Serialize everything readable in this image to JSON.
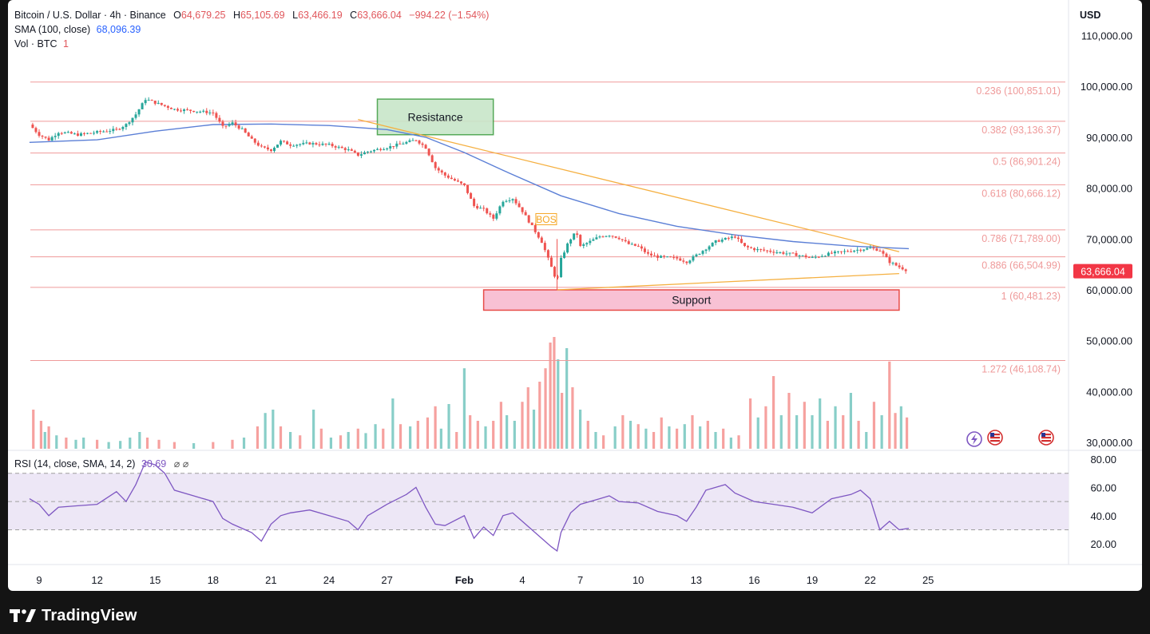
{
  "legend": {
    "symbol": "Bitcoin / U.S. Dollar · 4h · Binance",
    "open_label": "O",
    "open": "64,679.25",
    "high_label": "H",
    "high": "65,105.69",
    "low_label": "L",
    "low": "63,466.19",
    "close_label": "C",
    "close": "63,666.04",
    "change": "−994.22 (−1.54%)",
    "sma_label": "SMA (100, close)",
    "sma_value": "68,096.39",
    "vol_label": "Vol · BTC",
    "vol_value": "1"
  },
  "rsi_legend": {
    "label": "RSI (14, close, SMA, 14, 2)",
    "value": "30.69",
    "icons": "⌀  ⌀"
  },
  "currency": "USD",
  "price_badge": "63,666.04",
  "annotations": {
    "resistance": "Resistance",
    "support": "Support",
    "bos": "BOS"
  },
  "brand": "TradingView",
  "colors": {
    "up": "#26a69a",
    "down": "#ef5350",
    "sma": "#5b7fd6",
    "fib": "#ef9a9a",
    "trend": "#f5b041",
    "rsi": "#7e57c2",
    "rsi_band": "#ede7f6",
    "resistance_fill": "#c8e6c9",
    "resistance_border": "#43a047",
    "support_fill": "#f8bbd0",
    "support_border": "#e53935",
    "badge": "#f23645"
  },
  "chart_data": {
    "type": "candlestick",
    "timeframe": "4h",
    "price_axis": {
      "ticks": [
        "110,000.00",
        "100,000.00",
        "90,000.00",
        "80,000.00",
        "70,000.00",
        "60,000.00",
        "50,000.00",
        "40,000.00",
        "30,000.00"
      ],
      "values": [
        110000,
        100000,
        90000,
        80000,
        70000,
        60000,
        50000,
        40000,
        30000
      ],
      "ylim": [
        28000,
        116000
      ]
    },
    "x_axis": {
      "ticks": [
        "9",
        "12",
        "15",
        "18",
        "21",
        "24",
        "27",
        "Feb",
        "4",
        "7",
        "10",
        "13",
        "16",
        "19",
        "22",
        "25"
      ],
      "day_index": [
        0,
        3,
        6,
        9,
        12,
        15,
        18,
        22,
        25,
        28,
        31,
        34,
        37,
        40,
        43,
        46
      ]
    },
    "price_path": [
      [
        -0.5,
        92500
      ],
      [
        0,
        90500
      ],
      [
        0.5,
        89500
      ],
      [
        1,
        91000
      ],
      [
        1.5,
        90800
      ],
      [
        2,
        90500
      ],
      [
        3,
        91000
      ],
      [
        4,
        91500
      ],
      [
        4.5,
        92500
      ],
      [
        5,
        94500
      ],
      [
        5.5,
        97500
      ],
      [
        6,
        96800
      ],
      [
        7,
        95500
      ],
      [
        8,
        95200
      ],
      [
        9,
        94800
      ],
      [
        9.5,
        92000
      ],
      [
        10,
        92800
      ],
      [
        10.5,
        91500
      ],
      [
        11,
        89500
      ],
      [
        11.5,
        88000
      ],
      [
        12,
        87500
      ],
      [
        12.5,
        89200
      ],
      [
        13,
        88500
      ],
      [
        14,
        88800
      ],
      [
        15,
        88500
      ],
      [
        16,
        87500
      ],
      [
        16.5,
        86500
      ],
      [
        17,
        87200
      ],
      [
        18,
        88000
      ],
      [
        19,
        89000
      ],
      [
        19.5,
        89500
      ],
      [
        20,
        88000
      ],
      [
        20.5,
        84000
      ],
      [
        21,
        82500
      ],
      [
        22,
        80500
      ],
      [
        22.5,
        76500
      ],
      [
        23,
        75800
      ],
      [
        23.5,
        74000
      ],
      [
        24,
        77500
      ],
      [
        24.5,
        78000
      ],
      [
        25,
        75500
      ],
      [
        25.5,
        72500
      ],
      [
        26,
        69500
      ],
      [
        26.5,
        64500
      ],
      [
        26.8,
        61500
      ],
      [
        27,
        66000
      ],
      [
        27.4,
        69500
      ],
      [
        27.8,
        71500
      ],
      [
        28,
        68500
      ],
      [
        28.5,
        69500
      ],
      [
        29,
        70500
      ],
      [
        29.5,
        70800
      ],
      [
        30,
        70200
      ],
      [
        30.5,
        69000
      ],
      [
        31,
        68500
      ],
      [
        31.5,
        67000
      ],
      [
        32,
        66500
      ],
      [
        33,
        66200
      ],
      [
        33.5,
        65500
      ],
      [
        34,
        66800
      ],
      [
        35,
        69500
      ],
      [
        36,
        70500
      ],
      [
        36.5,
        68500
      ],
      [
        37,
        68000
      ],
      [
        38,
        67500
      ],
      [
        39,
        67000
      ],
      [
        40,
        66300
      ],
      [
        41,
        67200
      ],
      [
        42,
        67700
      ],
      [
        43,
        68200
      ],
      [
        43.5,
        67800
      ],
      [
        44,
        65500
      ],
      [
        44.5,
        64500
      ],
      [
        45,
        63666
      ]
    ],
    "sma_path": [
      [
        -0.5,
        89000
      ],
      [
        3,
        89500
      ],
      [
        6,
        91200
      ],
      [
        9,
        92500
      ],
      [
        12,
        92600
      ],
      [
        15,
        92300
      ],
      [
        18,
        91500
      ],
      [
        20,
        90000
      ],
      [
        22,
        87000
      ],
      [
        24,
        83500
      ],
      [
        27,
        78500
      ],
      [
        30,
        75000
      ],
      [
        33,
        72500
      ],
      [
        36,
        70800
      ],
      [
        39,
        69500
      ],
      [
        42,
        68600
      ],
      [
        45,
        68096
      ]
    ],
    "fibonacci": [
      {
        "level": "0.236",
        "price": 100851.01,
        "label": "0.236 (100,851.01)"
      },
      {
        "level": "0.382",
        "price": 93136.37,
        "label": "0.382 (93,136.37)"
      },
      {
        "level": "0.5",
        "price": 86901.24,
        "label": "0.5 (86,901.24)"
      },
      {
        "level": "0.618",
        "price": 80666.12,
        "label": "0.618 (80,666.12)"
      },
      {
        "level": "0.786",
        "price": 71789.0,
        "label": "0.786 (71,789.00)"
      },
      {
        "level": "0.886",
        "price": 66504.99,
        "label": "0.886 (66,504.99)"
      },
      {
        "level": "1",
        "price": 60481.23,
        "label": "1 (60,481.23)"
      },
      {
        "level": "1.272",
        "price": 46108.74,
        "label": "1.272 (46,108.74)"
      }
    ],
    "resistance_zone": {
      "x": [
        17.5,
        23.5
      ],
      "price": [
        90500,
        97500
      ]
    },
    "support_zone": {
      "x": [
        23.0,
        44.5
      ],
      "price": [
        56000,
        60000
      ]
    },
    "trendlines": [
      {
        "from": [
          16.5,
          93500
        ],
        "to": [
          44.5,
          67500
        ]
      },
      {
        "from": [
          26.8,
          60000
        ],
        "to": [
          44.5,
          63200
        ]
      }
    ],
    "rsi": {
      "axis_ticks": [
        "80.00",
        "60.00",
        "40.00",
        "20.00"
      ],
      "axis_values": [
        80,
        60,
        40,
        20
      ],
      "ylim": [
        10,
        90
      ],
      "band": [
        30,
        70
      ],
      "mid": 50,
      "path": [
        [
          -0.5,
          52
        ],
        [
          0,
          48
        ],
        [
          0.5,
          40
        ],
        [
          1,
          46
        ],
        [
          2,
          47
        ],
        [
          3,
          48
        ],
        [
          4,
          57
        ],
        [
          4.5,
          50
        ],
        [
          5,
          62
        ],
        [
          5.5,
          78
        ],
        [
          6,
          76
        ],
        [
          6.5,
          70
        ],
        [
          7,
          58
        ],
        [
          8,
          54
        ],
        [
          9,
          50
        ],
        [
          9.5,
          38
        ],
        [
          10,
          34
        ],
        [
          11,
          28
        ],
        [
          11.5,
          22
        ],
        [
          12,
          34
        ],
        [
          12.5,
          40
        ],
        [
          13,
          42
        ],
        [
          14,
          44
        ],
        [
          15,
          40
        ],
        [
          16,
          36
        ],
        [
          16.5,
          30
        ],
        [
          17,
          40
        ],
        [
          18,
          48
        ],
        [
          19,
          55
        ],
        [
          19.5,
          60
        ],
        [
          20,
          46
        ],
        [
          20.5,
          34
        ],
        [
          21,
          33
        ],
        [
          22,
          40
        ],
        [
          22.5,
          24
        ],
        [
          23,
          32
        ],
        [
          23.5,
          26
        ],
        [
          24,
          40
        ],
        [
          24.5,
          42
        ],
        [
          25,
          36
        ],
        [
          25.5,
          30
        ],
        [
          26,
          24
        ],
        [
          26.5,
          18
        ],
        [
          26.8,
          15
        ],
        [
          27,
          28
        ],
        [
          27.5,
          42
        ],
        [
          28,
          48
        ],
        [
          29,
          52
        ],
        [
          29.5,
          54
        ],
        [
          30,
          50
        ],
        [
          31,
          49
        ],
        [
          32,
          43
        ],
        [
          33,
          40
        ],
        [
          33.5,
          36
        ],
        [
          34,
          46
        ],
        [
          34.5,
          58
        ],
        [
          35,
          60
        ],
        [
          35.5,
          62
        ],
        [
          36,
          56
        ],
        [
          37,
          50
        ],
        [
          38,
          48
        ],
        [
          39,
          46
        ],
        [
          40,
          42
        ],
        [
          41,
          52
        ],
        [
          42,
          55
        ],
        [
          42.5,
          58
        ],
        [
          43,
          52
        ],
        [
          43.5,
          30
        ],
        [
          44,
          36
        ],
        [
          44.5,
          30
        ],
        [
          45,
          31
        ]
      ]
    },
    "volume_scale_note": "relative",
    "volume": [
      {
        "d": -0.3,
        "v": 0.35,
        "up": false
      },
      {
        "d": 0.1,
        "v": 0.25,
        "up": false
      },
      {
        "d": 0.3,
        "v": 0.15,
        "up": true
      },
      {
        "d": 0.5,
        "v": 0.2,
        "up": false
      },
      {
        "d": 0.9,
        "v": 0.12,
        "up": true
      },
      {
        "d": 1.4,
        "v": 0.1,
        "up": false
      },
      {
        "d": 1.9,
        "v": 0.08,
        "up": true
      },
      {
        "d": 2.3,
        "v": 0.1,
        "up": true
      },
      {
        "d": 3.0,
        "v": 0.08,
        "up": false
      },
      {
        "d": 3.6,
        "v": 0.06,
        "up": true
      },
      {
        "d": 4.2,
        "v": 0.07,
        "up": true
      },
      {
        "d": 4.7,
        "v": 0.1,
        "up": true
      },
      {
        "d": 5.2,
        "v": 0.15,
        "up": true
      },
      {
        "d": 5.6,
        "v": 0.1,
        "up": false
      },
      {
        "d": 6.2,
        "v": 0.08,
        "up": false
      },
      {
        "d": 7.0,
        "v": 0.06,
        "up": false
      },
      {
        "d": 8.0,
        "v": 0.05,
        "up": true
      },
      {
        "d": 9.0,
        "v": 0.06,
        "up": false
      },
      {
        "d": 10.0,
        "v": 0.08,
        "up": false
      },
      {
        "d": 10.6,
        "v": 0.1,
        "up": true
      },
      {
        "d": 11.3,
        "v": 0.2,
        "up": false
      },
      {
        "d": 11.7,
        "v": 0.32,
        "up": true
      },
      {
        "d": 12.1,
        "v": 0.35,
        "up": true
      },
      {
        "d": 12.5,
        "v": 0.2,
        "up": false
      },
      {
        "d": 13.0,
        "v": 0.15,
        "up": true
      },
      {
        "d": 13.5,
        "v": 0.12,
        "up": false
      },
      {
        "d": 14.2,
        "v": 0.35,
        "up": true
      },
      {
        "d": 14.6,
        "v": 0.18,
        "up": false
      },
      {
        "d": 15.1,
        "v": 0.1,
        "up": true
      },
      {
        "d": 15.6,
        "v": 0.12,
        "up": false
      },
      {
        "d": 16.0,
        "v": 0.15,
        "up": true
      },
      {
        "d": 16.5,
        "v": 0.18,
        "up": false
      },
      {
        "d": 16.9,
        "v": 0.14,
        "up": true
      },
      {
        "d": 17.4,
        "v": 0.22,
        "up": true
      },
      {
        "d": 17.8,
        "v": 0.18,
        "up": false
      },
      {
        "d": 18.3,
        "v": 0.45,
        "up": true
      },
      {
        "d": 18.7,
        "v": 0.22,
        "up": false
      },
      {
        "d": 19.2,
        "v": 0.2,
        "up": true
      },
      {
        "d": 19.6,
        "v": 0.25,
        "up": false
      },
      {
        "d": 20.1,
        "v": 0.28,
        "up": false
      },
      {
        "d": 20.5,
        "v": 0.38,
        "up": false
      },
      {
        "d": 20.8,
        "v": 0.18,
        "up": true
      },
      {
        "d": 21.2,
        "v": 0.4,
        "up": true
      },
      {
        "d": 21.6,
        "v": 0.15,
        "up": false
      },
      {
        "d": 22.0,
        "v": 0.72,
        "up": true
      },
      {
        "d": 22.3,
        "v": 0.3,
        "up": false
      },
      {
        "d": 22.7,
        "v": 0.25,
        "up": false
      },
      {
        "d": 23.1,
        "v": 0.2,
        "up": true
      },
      {
        "d": 23.5,
        "v": 0.25,
        "up": false
      },
      {
        "d": 23.9,
        "v": 0.42,
        "up": false
      },
      {
        "d": 24.2,
        "v": 0.3,
        "up": true
      },
      {
        "d": 24.6,
        "v": 0.25,
        "up": true
      },
      {
        "d": 25.0,
        "v": 0.42,
        "up": false
      },
      {
        "d": 25.3,
        "v": 0.55,
        "up": false
      },
      {
        "d": 25.6,
        "v": 0.35,
        "up": true
      },
      {
        "d": 25.9,
        "v": 0.6,
        "up": false
      },
      {
        "d": 26.2,
        "v": 0.72,
        "up": false
      },
      {
        "d": 26.45,
        "v": 0.95,
        "up": false
      },
      {
        "d": 26.65,
        "v": 1.0,
        "up": false
      },
      {
        "d": 26.85,
        "v": 0.8,
        "up": true
      },
      {
        "d": 27.05,
        "v": 0.5,
        "up": false
      },
      {
        "d": 27.3,
        "v": 0.9,
        "up": true
      },
      {
        "d": 27.6,
        "v": 0.55,
        "up": false
      },
      {
        "d": 28.0,
        "v": 0.35,
        "up": true
      },
      {
        "d": 28.4,
        "v": 0.25,
        "up": false
      },
      {
        "d": 28.8,
        "v": 0.15,
        "up": true
      },
      {
        "d": 29.2,
        "v": 0.12,
        "up": false
      },
      {
        "d": 29.8,
        "v": 0.2,
        "up": true
      },
      {
        "d": 30.2,
        "v": 0.3,
        "up": false
      },
      {
        "d": 30.6,
        "v": 0.25,
        "up": true
      },
      {
        "d": 31.0,
        "v": 0.22,
        "up": false
      },
      {
        "d": 31.4,
        "v": 0.18,
        "up": true
      },
      {
        "d": 31.8,
        "v": 0.15,
        "up": false
      },
      {
        "d": 32.2,
        "v": 0.28,
        "up": false
      },
      {
        "d": 32.6,
        "v": 0.2,
        "up": true
      },
      {
        "d": 33.0,
        "v": 0.18,
        "up": false
      },
      {
        "d": 33.4,
        "v": 0.22,
        "up": true
      },
      {
        "d": 33.8,
        "v": 0.3,
        "up": false
      },
      {
        "d": 34.2,
        "v": 0.2,
        "up": true
      },
      {
        "d": 34.6,
        "v": 0.25,
        "up": false
      },
      {
        "d": 35.0,
        "v": 0.15,
        "up": true
      },
      {
        "d": 35.4,
        "v": 0.18,
        "up": false
      },
      {
        "d": 35.8,
        "v": 0.1,
        "up": true
      },
      {
        "d": 36.2,
        "v": 0.12,
        "up": false
      },
      {
        "d": 36.8,
        "v": 0.45,
        "up": false
      },
      {
        "d": 37.2,
        "v": 0.28,
        "up": true
      },
      {
        "d": 37.6,
        "v": 0.38,
        "up": false
      },
      {
        "d": 38.0,
        "v": 0.65,
        "up": false
      },
      {
        "d": 38.4,
        "v": 0.3,
        "up": true
      },
      {
        "d": 38.8,
        "v": 0.5,
        "up": false
      },
      {
        "d": 39.2,
        "v": 0.3,
        "up": true
      },
      {
        "d": 39.6,
        "v": 0.42,
        "up": false
      },
      {
        "d": 40.0,
        "v": 0.3,
        "up": true
      },
      {
        "d": 40.4,
        "v": 0.45,
        "up": true
      },
      {
        "d": 40.8,
        "v": 0.25,
        "up": false
      },
      {
        "d": 41.2,
        "v": 0.38,
        "up": true
      },
      {
        "d": 41.6,
        "v": 0.3,
        "up": false
      },
      {
        "d": 42.0,
        "v": 0.5,
        "up": true
      },
      {
        "d": 42.4,
        "v": 0.25,
        "up": false
      },
      {
        "d": 42.8,
        "v": 0.15,
        "up": true
      },
      {
        "d": 43.2,
        "v": 0.42,
        "up": false
      },
      {
        "d": 43.6,
        "v": 0.3,
        "up": true
      },
      {
        "d": 44.0,
        "v": 0.78,
        "up": false
      },
      {
        "d": 44.3,
        "v": 0.32,
        "up": false
      },
      {
        "d": 44.6,
        "v": 0.38,
        "up": true
      },
      {
        "d": 44.9,
        "v": 0.28,
        "up": false
      }
    ]
  }
}
